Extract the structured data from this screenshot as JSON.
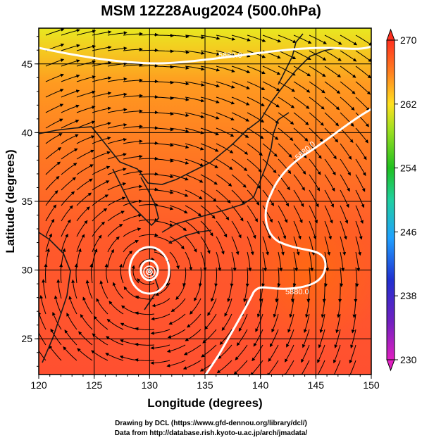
{
  "title": "MSM 12Z28Aug2024 (500.0hPa)",
  "xaxis": {
    "label": "Longitude (degrees)",
    "range": [
      120,
      150
    ],
    "ticks": [
      "120",
      "125",
      "130",
      "135",
      "140",
      "145",
      "150"
    ]
  },
  "yaxis": {
    "label": "Latitude  (degrees)",
    "range": [
      22.4,
      47.6
    ],
    "ticks": [
      "25",
      "30",
      "35",
      "40",
      "45"
    ]
  },
  "colorbar": {
    "range": [
      230,
      270
    ],
    "ticks": [
      "230",
      "238",
      "246",
      "254",
      "262",
      "270"
    ],
    "colors": [
      "#e020c0",
      "#7020c0",
      "#2030c0",
      "#20a0ff",
      "#20d0a0",
      "#20c020",
      "#a0e020",
      "#ffe020",
      "#ff8020",
      "#ff3020"
    ]
  },
  "contours": [
    {
      "label": "5880.0",
      "color": "#ffffff"
    },
    {
      "label": "5880.0",
      "color": "#ffffff"
    },
    {
      "label": "5880.0",
      "color": "#ffffff"
    }
  ],
  "credits": {
    "line1": "Drawing by DCL (https://www.gfd-dennou.org/library/dcl/)",
    "line2": "Data from http://database.rish.kyoto-u.ac.jp/arch/jmadata/"
  },
  "colors": {
    "field_warm": "#ff5a2a",
    "field_mid": "#ff8a1a",
    "field_cool": "#e8e020",
    "land_outline": "#1a1a1a",
    "grid": "#000000"
  }
}
